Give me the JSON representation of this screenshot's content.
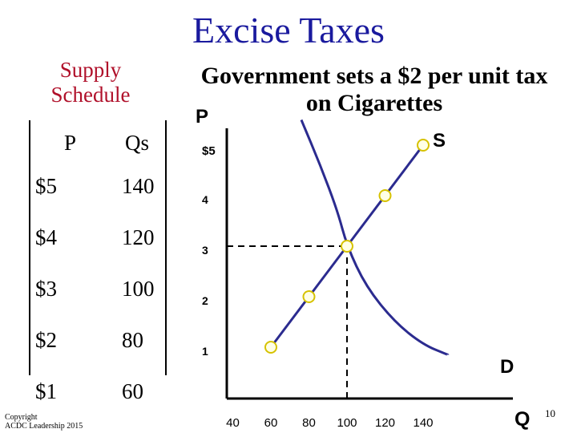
{
  "slide": {
    "title": "Excise Taxes",
    "supply_heading": "Supply Schedule",
    "gov_note": "Government sets a $2 per unit tax on Cigarettes",
    "copyright_line1": "Copyright",
    "copyright_line2": "ACDC Leadership 2015",
    "slide_number": "10"
  },
  "table": {
    "headers": [
      "P",
      "Qs"
    ],
    "rows": [
      [
        "$5",
        "140"
      ],
      [
        "$4",
        "120"
      ],
      [
        "$3",
        "100"
      ],
      [
        "$2",
        "80"
      ],
      [
        "$1",
        "60"
      ]
    ]
  },
  "chart_data": {
    "type": "line",
    "xlabel": "Q",
    "ylabel": "P",
    "x_ticks": [
      "40",
      "60",
      "80",
      "100",
      "120",
      "140"
    ],
    "y_ticks": [
      "$5",
      "4",
      "3",
      "2",
      "1"
    ],
    "xlim": [
      30,
      150
    ],
    "ylim": [
      0,
      5.5
    ],
    "series": [
      {
        "name": "S",
        "points": [
          [
            60,
            1
          ],
          [
            80,
            2
          ],
          [
            100,
            3
          ],
          [
            120,
            4
          ],
          [
            140,
            5
          ]
        ]
      },
      {
        "name": "D",
        "points": [
          [
            76,
            5.5
          ],
          [
            86,
            4.6
          ],
          [
            95,
            3.7
          ],
          [
            100,
            3
          ],
          [
            110,
            2.2
          ],
          [
            125,
            1.5
          ],
          [
            140,
            1.05
          ],
          [
            153,
            0.85
          ]
        ]
      }
    ],
    "equilibrium": {
      "x": 100,
      "y": 3
    },
    "colors": {
      "curve": "#2b2b8f",
      "marker_fill": "#ffffe6",
      "marker_stroke": "#d6c200",
      "title": "#1a1a9e",
      "subtitle": "#b0102a"
    }
  }
}
